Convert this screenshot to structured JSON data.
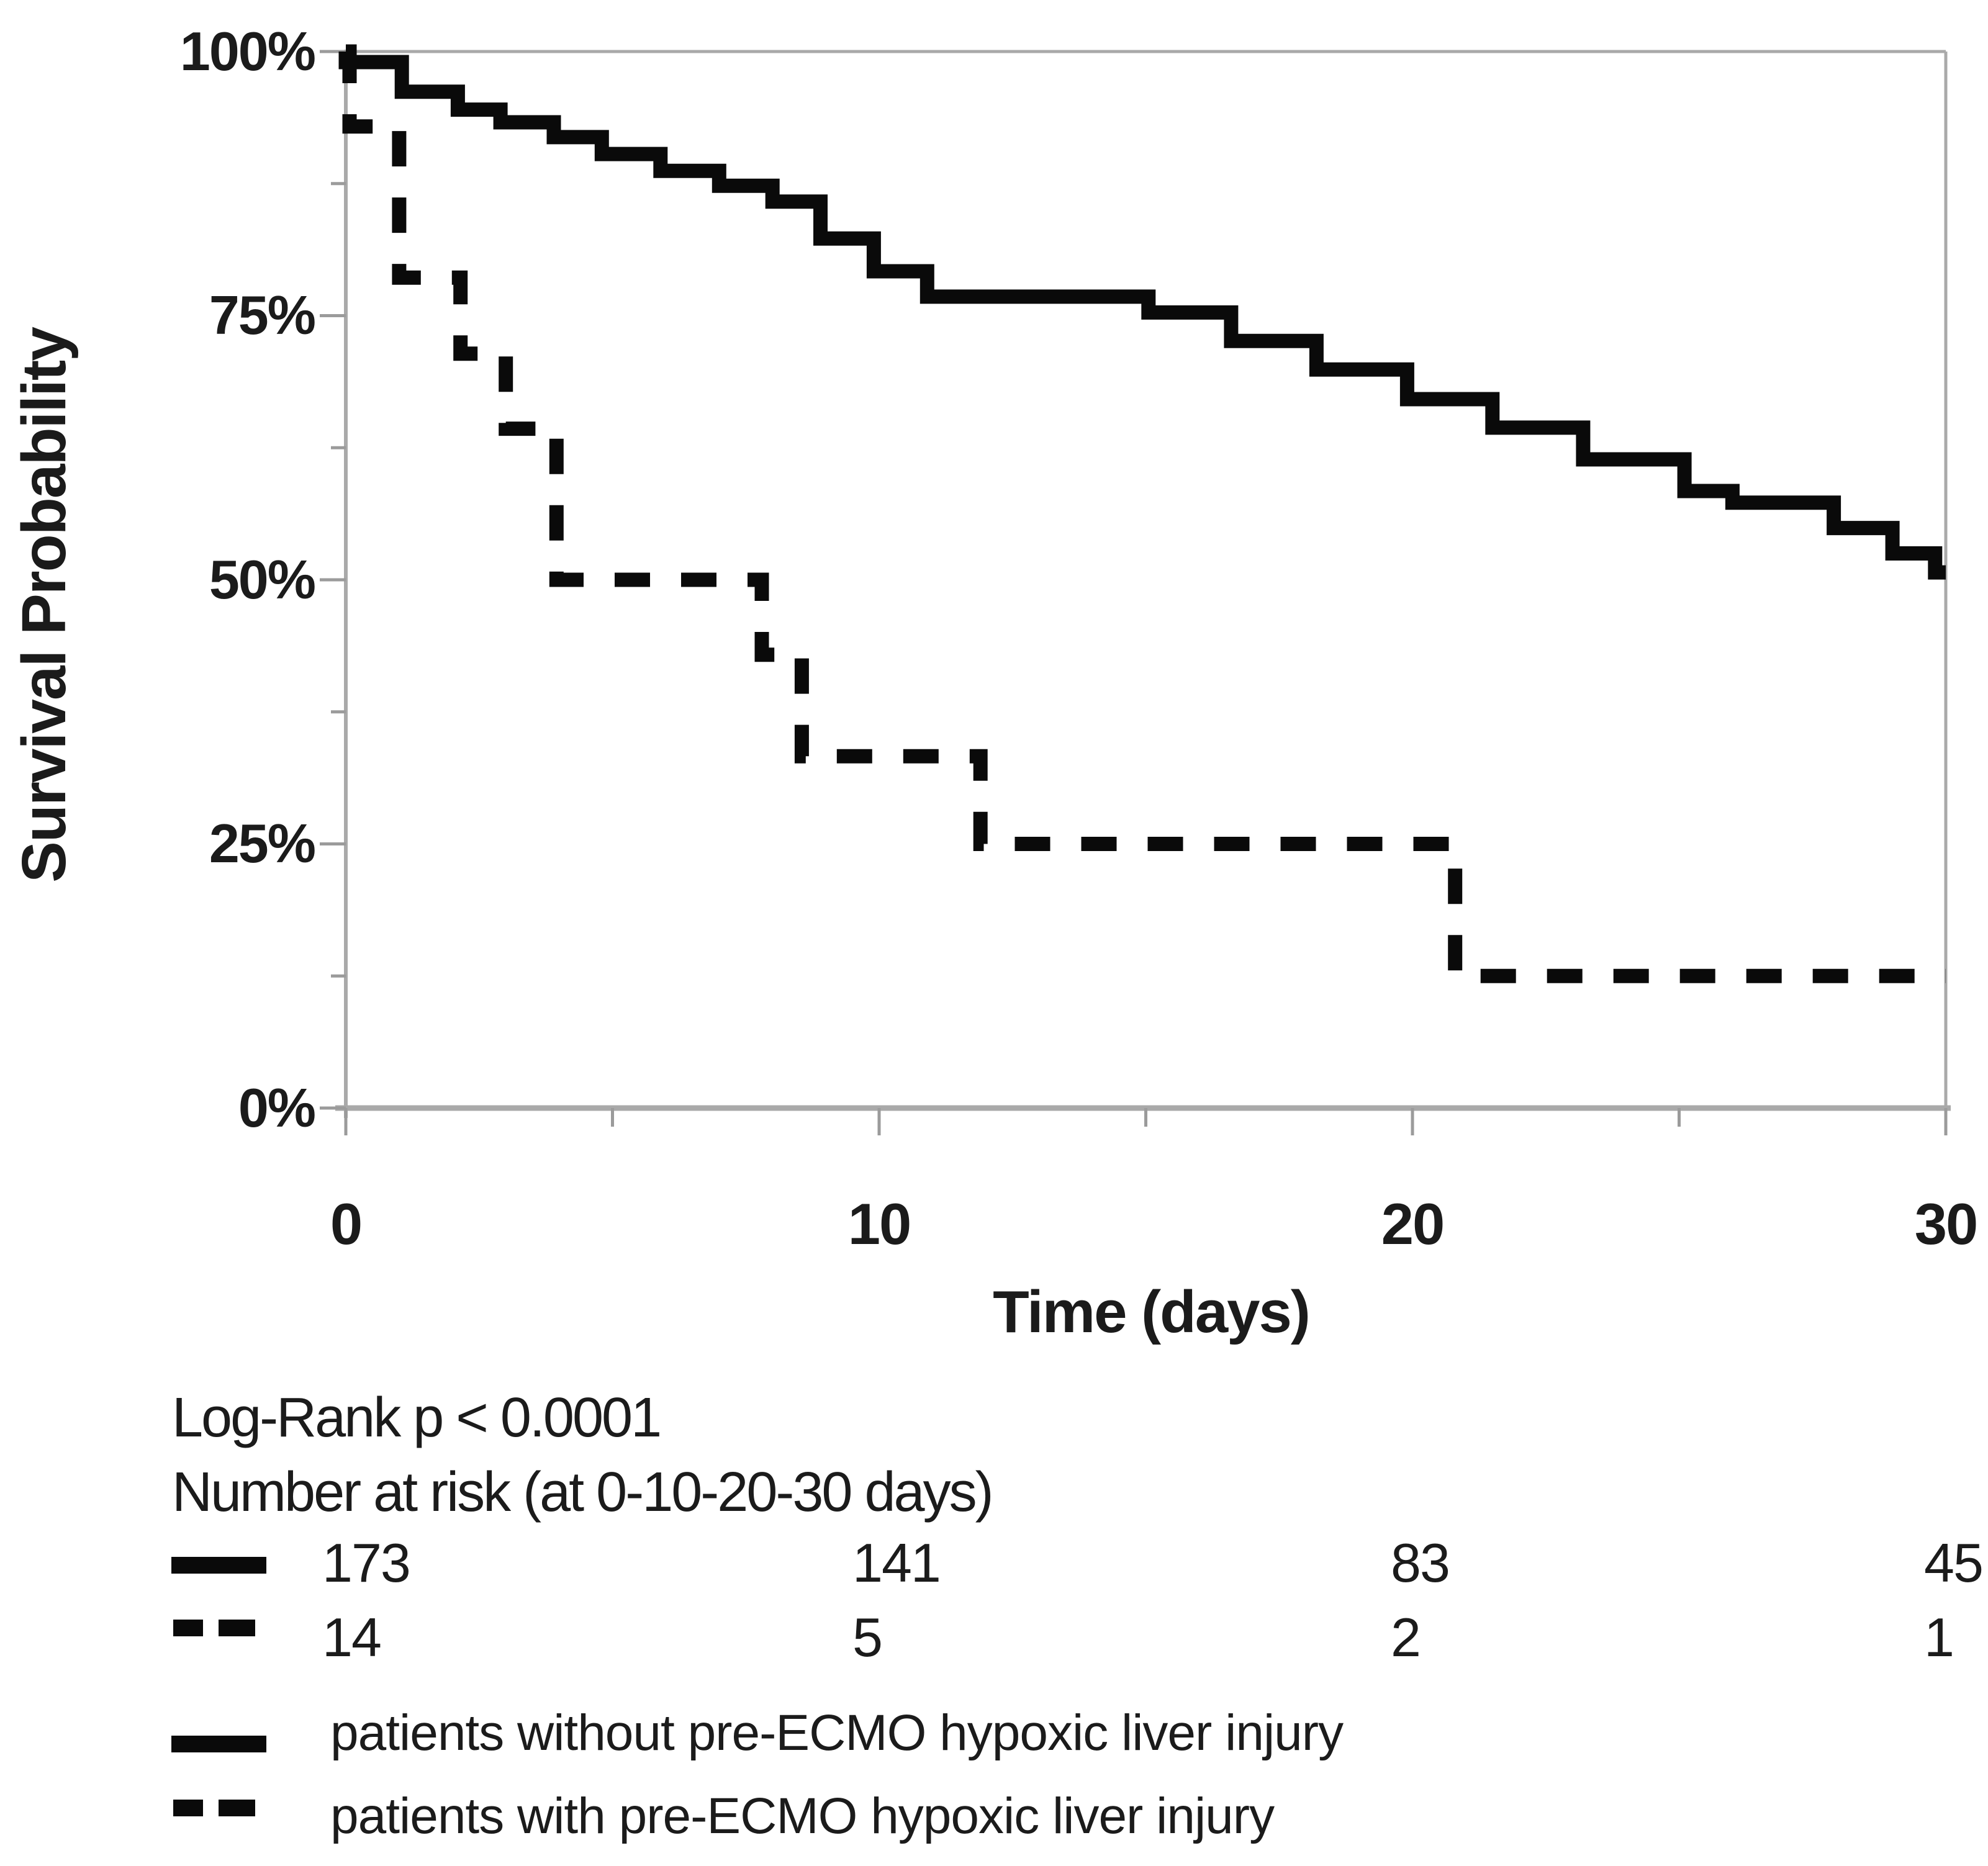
{
  "chart_data": {
    "type": "line",
    "subtype": "kaplan-meier-step-curve",
    "title": "",
    "xlabel": "Time (days)",
    "ylabel": "Survival Probability",
    "xlim": [
      0,
      30
    ],
    "ylim": [
      0,
      100
    ],
    "grid": false,
    "x_ticks": [
      0,
      10,
      20,
      30
    ],
    "x_minor_ticks": [
      5,
      15,
      25
    ],
    "x_tick_labels": [
      "0",
      "10",
      "20",
      "30"
    ],
    "y_ticks": [
      100,
      75,
      50,
      25,
      0
    ],
    "y_minor_ticks": [
      87.5,
      62.5,
      37.5,
      12.5
    ],
    "y_tick_labels": [
      "100%",
      "75%",
      "50%",
      "25%",
      "0%"
    ],
    "series": [
      {
        "name": "patients without pre-ECMO hypoxic liver injury",
        "line_style": "solid",
        "color": "#0a0a0a",
        "start_value": 100,
        "steps": [
          [
            0,
            99.0
          ],
          [
            1.05,
            96.2
          ],
          [
            2.1,
            94.5
          ],
          [
            2.9,
            93.3
          ],
          [
            3.9,
            91.9
          ],
          [
            4.8,
            90.3
          ],
          [
            5.9,
            88.7
          ],
          [
            7.0,
            87.3
          ],
          [
            8.0,
            85.8
          ],
          [
            8.9,
            82.3
          ],
          [
            9.9,
            79.2
          ],
          [
            10.9,
            76.8
          ],
          [
            15.05,
            75.3
          ],
          [
            16.6,
            72.6
          ],
          [
            18.2,
            69.9
          ],
          [
            19.9,
            67.1
          ],
          [
            21.5,
            64.4
          ],
          [
            23.2,
            61.4
          ],
          [
            25.1,
            58.4
          ],
          [
            26.0,
            57.3
          ],
          [
            27.9,
            54.9
          ],
          [
            29.0,
            52.5
          ],
          [
            29.8,
            50.7
          ],
          [
            30,
            50.7
          ]
        ]
      },
      {
        "name": "patients with pre-ECMO hypoxic liver injury",
        "line_style": "dashed",
        "color": "#0a0a0a",
        "start_value": 100,
        "steps": [
          [
            0.07,
            92.9
          ],
          [
            1.0,
            78.6
          ],
          [
            2.15,
            71.4
          ],
          [
            3.0,
            64.3
          ],
          [
            3.95,
            50.0
          ],
          [
            7.8,
            42.9
          ],
          [
            8.55,
            33.3
          ],
          [
            11.9,
            25.0
          ],
          [
            20.8,
            12.5
          ],
          [
            30,
            12.5
          ]
        ]
      }
    ],
    "annotations": {
      "logrank": "Log-Rank p < 0.0001",
      "risk_header": "Number at risk (at 0-10-20-30 days)"
    },
    "number_at_risk": {
      "times": [
        0,
        10,
        20,
        30
      ],
      "rows": [
        {
          "series": "patients without pre-ECMO hypoxic liver injury",
          "style": "solid",
          "counts": [
            "173",
            "141",
            "83",
            "45"
          ]
        },
        {
          "series": "patients with pre-ECMO hypoxic liver injury",
          "style": "dashed",
          "counts": [
            "14",
            "5",
            "2",
            "1"
          ]
        }
      ]
    },
    "legend": [
      {
        "label": "patients without pre-ECMO hypoxic liver injury",
        "style": "solid"
      },
      {
        "label": "patients with pre-ECMO hypoxic liver injury",
        "style": "dashed"
      }
    ],
    "legend_position": "bottom-left",
    "colors": {
      "curve": "#0a0a0a",
      "axis_line": "#a9a9a9",
      "tick": "#9b9b9b",
      "text": "#1b1b1b",
      "background": "#ffffff"
    }
  }
}
